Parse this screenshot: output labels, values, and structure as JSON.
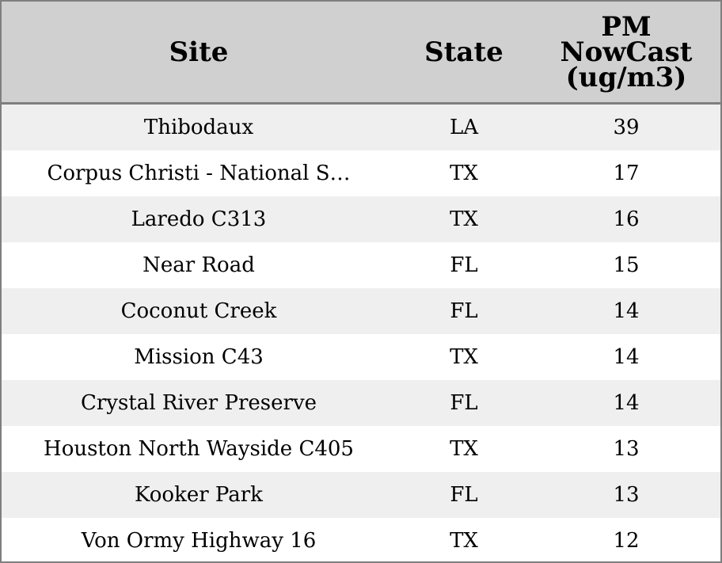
{
  "chart_data": {
    "type": "table",
    "columns": [
      "Site",
      "State",
      "PM NowCast (ug/m3)"
    ],
    "header_lines": [
      [
        "Site"
      ],
      [
        "State"
      ],
      [
        "PM",
        "NowCast",
        "(ug/m3)"
      ]
    ],
    "rows": [
      {
        "site": "Thibodaux",
        "state": "LA",
        "value": "39"
      },
      {
        "site": "Corpus Christi - National S…",
        "state": "TX",
        "value": "17"
      },
      {
        "site": "Laredo C313",
        "state": "TX",
        "value": "16"
      },
      {
        "site": "Near Road",
        "state": "FL",
        "value": "15"
      },
      {
        "site": "Coconut Creek",
        "state": "FL",
        "value": "14"
      },
      {
        "site": "Mission C43",
        "state": "TX",
        "value": "14"
      },
      {
        "site": "Crystal River Preserve",
        "state": "FL",
        "value": "14"
      },
      {
        "site": "Houston North Wayside C405",
        "state": "TX",
        "value": "13"
      },
      {
        "site": "Kooker Park",
        "state": "FL",
        "value": "13"
      },
      {
        "site": "Von Ormy Highway 16",
        "state": "TX",
        "value": "12"
      }
    ]
  },
  "colors": {
    "header_bg": "#d0d0d0",
    "row_shaded": "#efefef",
    "row_plain": "#ffffff",
    "border": "#7f7f7f"
  }
}
